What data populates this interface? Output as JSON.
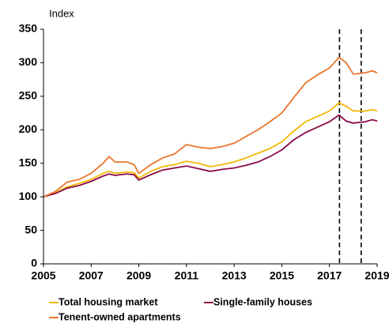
{
  "chart_data": {
    "type": "line",
    "y_label": "Index",
    "x": [
      2005,
      2005.5,
      2006,
      2006.5,
      2007,
      2007.5,
      2007.75,
      2008,
      2008.5,
      2008.8,
      2009,
      2009.5,
      2010,
      2010.5,
      2011,
      2011.5,
      2012,
      2012.5,
      2013,
      2013.5,
      2014,
      2014.5,
      2015,
      2015.5,
      2016,
      2016.5,
      2017,
      2017.4,
      2017.7,
      2018,
      2018.5,
      2018.8,
      2019
    ],
    "series": [
      {
        "name": "Total housing market",
        "color": "#f2b705",
        "values": [
          100,
          106,
          115,
          120,
          126,
          135,
          138,
          135,
          137,
          136,
          128,
          138,
          145,
          148,
          153,
          150,
          145,
          148,
          152,
          158,
          165,
          172,
          182,
          198,
          212,
          220,
          228,
          240,
          235,
          228,
          228,
          230,
          228
        ]
      },
      {
        "name": "Single-family houses",
        "color": "#8b0a4a",
        "values": [
          100,
          105,
          113,
          117,
          123,
          131,
          134,
          132,
          134,
          133,
          125,
          133,
          140,
          143,
          146,
          142,
          138,
          141,
          143,
          147,
          152,
          160,
          170,
          185,
          196,
          204,
          212,
          222,
          213,
          210,
          212,
          215,
          213
        ]
      },
      {
        "name": "Tenent-owned apartments",
        "color": "#e8772e",
        "values": [
          100,
          108,
          122,
          126,
          135,
          150,
          160,
          152,
          152,
          148,
          135,
          148,
          158,
          164,
          178,
          174,
          172,
          175,
          180,
          190,
          200,
          212,
          225,
          248,
          270,
          282,
          292,
          308,
          300,
          283,
          285,
          288,
          285
        ]
      }
    ],
    "xlim": [
      2005,
      2019
    ],
    "xticks": [
      2005,
      2007,
      2009,
      2011,
      2013,
      2015,
      2017,
      2019
    ],
    "ylim": [
      0,
      350
    ],
    "yticks": [
      0,
      50,
      100,
      150,
      200,
      250,
      300,
      350
    ],
    "vlines": [
      2017.42,
      2018.33
    ],
    "grid": false
  }
}
